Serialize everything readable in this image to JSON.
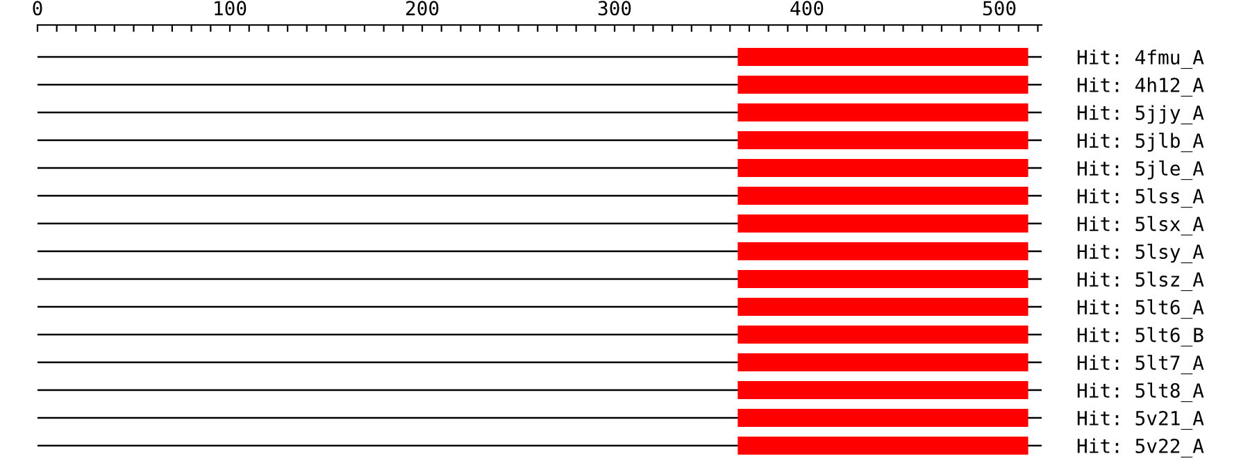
{
  "chart_data": {
    "type": "bar",
    "orientation": "horizontal",
    "categories": [
      "Hit: 4fmu_A",
      "Hit: 4h12_A",
      "Hit: 5jjy_A",
      "Hit: 5jlb_A",
      "Hit: 5jle_A",
      "Hit: 5lss_A",
      "Hit: 5lsx_A",
      "Hit: 5lsy_A",
      "Hit: 5lsz_A",
      "Hit: 5lt6_A",
      "Hit: 5lt6_B",
      "Hit: 5lt7_A",
      "Hit: 5lt8_A",
      "Hit: 5v21_A",
      "Hit: 5v22_A"
    ],
    "series": [
      {
        "color": "#000000",
        "base": [
          0,
          0,
          0,
          0,
          0,
          0,
          0,
          0,
          0,
          0,
          0,
          0,
          0,
          0,
          0
        ],
        "values": [
          522,
          522,
          522,
          522,
          522,
          522,
          522,
          522,
          522,
          522,
          522,
          522,
          522,
          522,
          522
        ]
      },
      {
        "color": "#ff0000",
        "base": [
          364,
          364,
          364,
          364,
          364,
          364,
          364,
          364,
          364,
          364,
          364,
          364,
          364,
          364,
          364
        ],
        "values": [
          151,
          151,
          151,
          151,
          151,
          151,
          151,
          151,
          151,
          151,
          151,
          151,
          151,
          151,
          151
        ]
      }
    ],
    "xlim": [
      0,
      522
    ],
    "xticks": [
      0,
      {
        "value": 10,
        "label": null
      },
      {
        "value": 20,
        "label": null
      },
      {
        "value": 30,
        "label": null
      },
      {
        "value": 40,
        "label": null
      },
      {
        "value": 50,
        "label": null
      },
      {
        "value": 60,
        "label": null
      },
      {
        "value": 70,
        "label": null
      },
      {
        "value": 80,
        "label": null
      },
      {
        "value": 90,
        "label": null
      },
      100,
      {
        "value": 110,
        "label": null
      },
      {
        "value": 120,
        "label": null
      },
      {
        "value": 130,
        "label": null
      },
      {
        "value": 140,
        "label": null
      },
      {
        "value": 150,
        "label": null
      },
      {
        "value": 160,
        "label": null
      },
      {
        "value": 170,
        "label": null
      },
      {
        "value": 180,
        "label": null
      },
      {
        "value": 190,
        "label": null
      },
      200,
      {
        "value": 210,
        "label": null
      },
      {
        "value": 220,
        "label": null
      },
      {
        "value": 230,
        "label": null
      },
      {
        "value": 240,
        "label": null
      },
      {
        "value": 250,
        "label": null
      },
      {
        "value": 260,
        "label": null
      },
      {
        "value": 270,
        "label": null
      },
      {
        "value": 280,
        "label": null
      },
      {
        "value": 290,
        "label": null
      },
      300,
      {
        "value": 310,
        "label": null
      },
      {
        "value": 320,
        "label": null
      },
      {
        "value": 330,
        "label": null
      },
      {
        "value": 340,
        "label": null
      },
      {
        "value": 350,
        "label": null
      },
      {
        "value": 360,
        "label": null
      },
      {
        "value": 370,
        "label": null
      },
      {
        "value": 380,
        "label": null
      },
      {
        "value": 390,
        "label": null
      },
      400,
      {
        "value": 410,
        "label": null
      },
      {
        "value": 420,
        "label": null
      },
      {
        "value": 430,
        "label": null
      },
      {
        "value": 440,
        "label": null
      },
      {
        "value": 450,
        "label": null
      },
      {
        "value": 460,
        "label": null
      },
      {
        "value": 470,
        "label": null
      },
      {
        "value": 480,
        "label": null
      },
      {
        "value": 490,
        "label": null
      },
      500,
      {
        "value": 510,
        "label": null
      },
      {
        "value": 520,
        "label": null
      }
    ],
    "grid": false,
    "legend": false
  }
}
